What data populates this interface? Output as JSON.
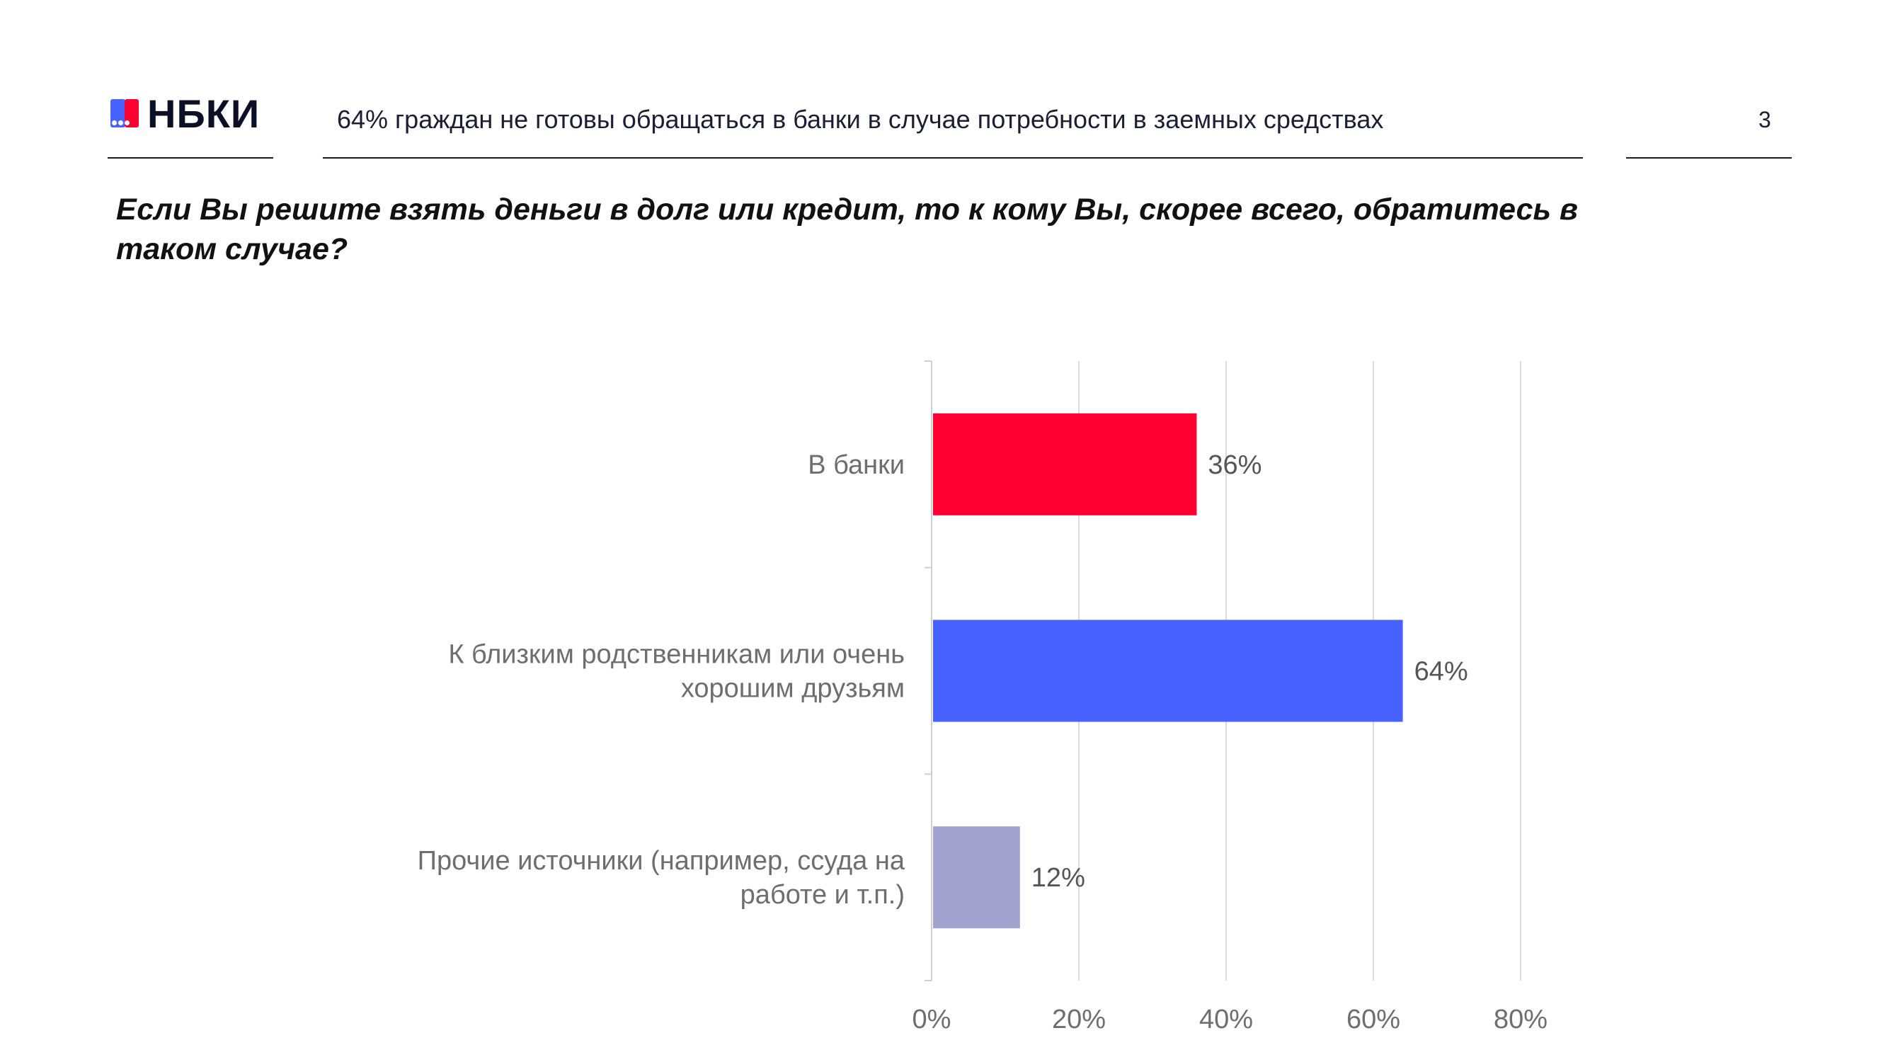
{
  "header": {
    "logo_text": "НБКИ",
    "title": "64% граждан не готовы обращаться в банки в случае потребности в заемных средствах",
    "page_number": "3"
  },
  "question": "Если Вы решите взять деньги в долг или кредит, то к кому Вы, скорее всего, обратитесь в таком случае?",
  "chart_data": {
    "type": "bar",
    "orientation": "horizontal",
    "categories": [
      [
        "В банки"
      ],
      [
        "К близким родственникам или очень",
        "хорошим друзьям"
      ],
      [
        "Прочие источники (например, ссуда на",
        "работе и т.п.)"
      ]
    ],
    "values": [
      36,
      64,
      12
    ],
    "value_labels": [
      "36%",
      "64%",
      "12%"
    ],
    "bar_colors": [
      "#ff0033",
      "#4862ff",
      "#a2a4cf"
    ],
    "xlim": [
      0,
      80
    ],
    "x_ticks": [
      0,
      20,
      40,
      60,
      80
    ],
    "x_tick_labels": [
      "0%",
      "20%",
      "40%",
      "60%",
      "80%"
    ],
    "grid": true,
    "legend": false
  }
}
